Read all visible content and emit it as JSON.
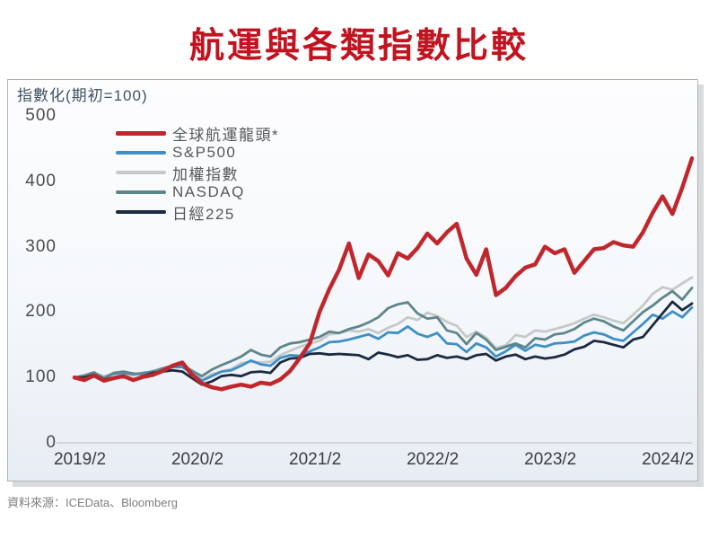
{
  "page": {
    "title": "航運與各類指數比較",
    "source_note": "資料來源：ICEData、Bloomberg"
  },
  "chart_data": {
    "type": "line",
    "title": "航運與各類指數比較",
    "note": "指數化(期初=100)",
    "x_start": "2019/2",
    "x_end": "2024/5",
    "x_frequency": "monthly",
    "points_per_series": 64,
    "x_tick_labels": [
      "2019/2",
      "2020/2",
      "2021/2",
      "2022/2",
      "2023/2",
      "2024/2"
    ],
    "x_tick_every_n_points": 12,
    "y_ticks": [
      0,
      100,
      200,
      300,
      400,
      500
    ],
    "ylim": [
      0,
      500
    ],
    "grid": "zero-line-only",
    "legend_position": "top-left-inside",
    "zero_line_color": "#c9ced3",
    "series": [
      {
        "id": "shipping-leader",
        "name": "全球航運龍頭*",
        "color": "#c0272d",
        "line_width": 4.5,
        "draw_order": 5,
        "values": [
          100,
          96,
          103,
          95,
          99,
          102,
          96,
          101,
          104,
          110,
          118,
          123,
          104,
          91,
          85,
          82,
          86,
          89,
          86,
          92,
          90,
          97,
          110,
          130,
          152,
          200,
          235,
          265,
          305,
          252,
          288,
          278,
          256,
          290,
          282,
          298,
          320,
          305,
          322,
          335,
          282,
          257,
          296,
          226,
          237,
          255,
          268,
          273,
          300,
          290,
          296,
          260,
          278,
          296,
          298,
          307,
          302,
          300,
          322,
          352,
          377,
          350,
          390,
          435
        ]
      },
      {
        "id": "sp500",
        "name": "S&P500",
        "color": "#3f8fc6",
        "line_width": 2.8,
        "draw_order": 2,
        "values": [
          100,
          102,
          106,
          99,
          106,
          107,
          105,
          107,
          109,
          113,
          116,
          116,
          106,
          95,
          102,
          109,
          111,
          118,
          126,
          120,
          118,
          130,
          134,
          133,
          140,
          146,
          154,
          155,
          158,
          162,
          166,
          159,
          169,
          168,
          178,
          167,
          162,
          168,
          152,
          151,
          139,
          152,
          146,
          132,
          140,
          150,
          141,
          150,
          147,
          152,
          153,
          155,
          164,
          169,
          166,
          159,
          156,
          169,
          182,
          196,
          190,
          201,
          192,
          207
        ]
      },
      {
        "id": "taiex",
        "name": "加權指數",
        "color": "#c6c9c8",
        "line_width": 2.8,
        "draw_order": 1,
        "values": [
          100,
          102,
          106,
          102,
          105,
          106,
          103,
          106,
          110,
          113,
          116,
          117,
          111,
          96,
          105,
          109,
          113,
          122,
          124,
          123,
          124,
          134,
          141,
          147,
          152,
          156,
          166,
          168,
          172,
          170,
          174,
          168,
          176,
          182,
          192,
          188,
          199,
          194,
          185,
          179,
          162,
          170,
          161,
          145,
          149,
          165,
          162,
          172,
          170,
          174,
          178,
          183,
          190,
          196,
          192,
          187,
          183,
          196,
          210,
          228,
          238,
          234,
          244,
          253
        ]
      },
      {
        "id": "nasdaq",
        "name": "NASDAQ",
        "color": "#5d868c",
        "line_width": 2.8,
        "draw_order": 3,
        "values": [
          100,
          103,
          108,
          99,
          107,
          109,
          106,
          105,
          109,
          114,
          118,
          120,
          110,
          102,
          112,
          119,
          125,
          132,
          142,
          135,
          132,
          146,
          152,
          154,
          158,
          162,
          170,
          168,
          174,
          178,
          184,
          192,
          206,
          212,
          215,
          198,
          190,
          192,
          172,
          168,
          151,
          168,
          158,
          142,
          147,
          152,
          146,
          160,
          158,
          166,
          168,
          174,
          184,
          190,
          186,
          178,
          172,
          186,
          200,
          210,
          222,
          232,
          219,
          237
        ]
      },
      {
        "id": "nikkei225",
        "name": "日經225",
        "color": "#1b2a41",
        "line_width": 2.8,
        "draw_order": 4,
        "values": [
          100,
          100,
          104,
          97,
          100,
          101,
          97,
          102,
          107,
          109,
          111,
          109,
          99,
          89,
          94,
          102,
          104,
          102,
          108,
          109,
          107,
          123,
          129,
          130,
          136,
          137,
          135,
          136,
          135,
          134,
          128,
          138,
          135,
          131,
          134,
          127,
          128,
          134,
          130,
          132,
          128,
          134,
          136,
          126,
          132,
          135,
          128,
          132,
          129,
          131,
          135,
          143,
          147,
          156,
          154,
          150,
          146,
          158,
          162,
          180,
          198,
          216,
          203,
          213
        ]
      }
    ],
    "source": "資料來源：ICEData、Bloomberg"
  },
  "colors": {
    "title_red": "#c11420",
    "axis_note": "#3e5363",
    "tick_label": "#4a4c4e",
    "box_border": "#adb3b8",
    "box_shadow": "#d9dadc",
    "source_text": "#7c7e80"
  }
}
